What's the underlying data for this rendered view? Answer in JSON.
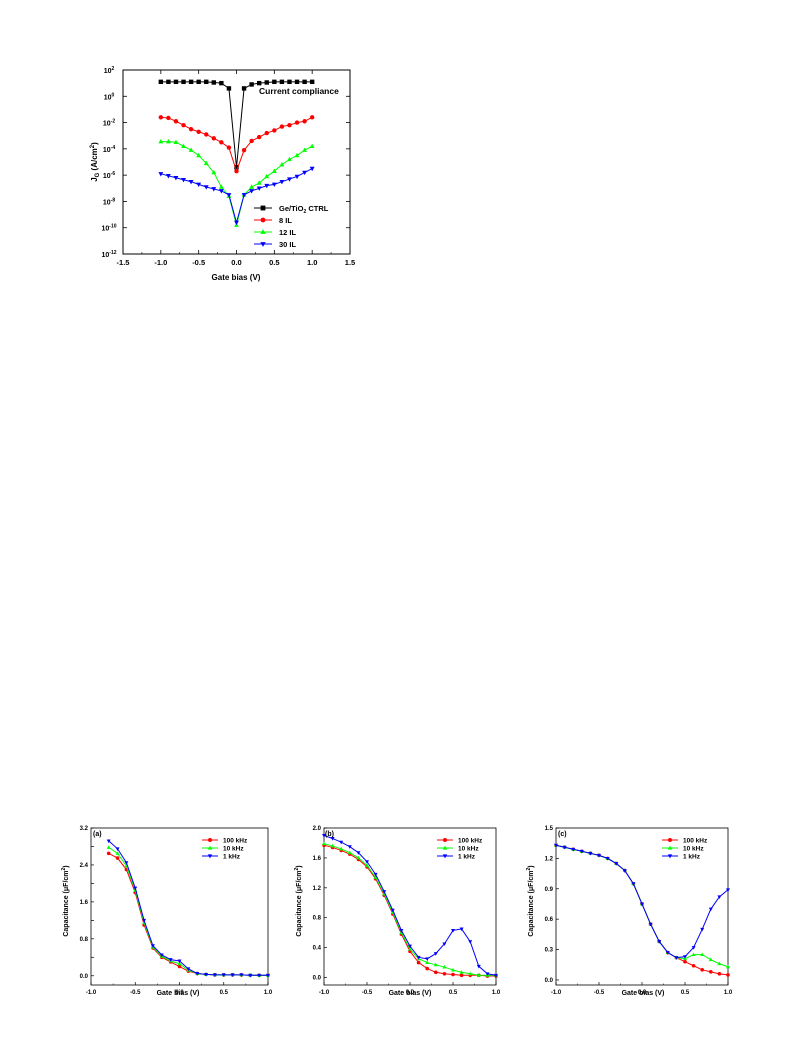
{
  "chart_data": [
    {
      "id": "main",
      "type": "line",
      "xlabel": "Gate bias (V)",
      "ylabel_main": "J",
      "ylabel_sub": "G",
      "ylabel_unit_pre": " (A/cm",
      "ylabel_unit_sup": "2",
      "ylabel_unit_post": ")",
      "xlim": [
        -1.5,
        1.5
      ],
      "ylim_log10": [
        -12,
        2
      ],
      "yscale": "log",
      "xticks": [
        -1.5,
        -1.0,
        -0.5,
        0.0,
        0.5,
        1.0,
        1.5
      ],
      "xtick_labels": [
        "-1.5",
        "-1.0",
        "-0.5",
        "0.0",
        "0.5",
        "1.0",
        "1.5"
      ],
      "ytick_exponents": [
        2,
        0,
        -2,
        -4,
        -6,
        -8,
        -10,
        -12
      ],
      "ytick_base": "10",
      "annotation": "Current compliance",
      "legend_position": "bottom-right",
      "series": [
        {
          "name_pre": "Ge/TiO",
          "name_sub": "2",
          "name_post": " CTRL",
          "color": "#000000",
          "marker": "square",
          "x": [
            -1.0,
            -0.9,
            -0.8,
            -0.7,
            -0.6,
            -0.5,
            -0.4,
            -0.3,
            -0.2,
            -0.1,
            0.0,
            0.1,
            0.2,
            0.3,
            0.4,
            0.5,
            0.6,
            0.7,
            0.8,
            0.9,
            1.0
          ],
          "y_log10": [
            1.1,
            1.1,
            1.1,
            1.1,
            1.1,
            1.1,
            1.1,
            1.05,
            1.0,
            0.6,
            -5.4,
            0.6,
            0.9,
            1.0,
            1.05,
            1.1,
            1.1,
            1.1,
            1.1,
            1.1,
            1.1
          ]
        },
        {
          "name_pre": "8 IL",
          "name_sub": "",
          "name_post": "",
          "color": "#ff0000",
          "marker": "circle",
          "x": [
            -1.0,
            -0.9,
            -0.8,
            -0.7,
            -0.6,
            -0.5,
            -0.4,
            -0.3,
            -0.2,
            -0.1,
            0.0,
            0.1,
            0.2,
            0.3,
            0.4,
            0.5,
            0.6,
            0.7,
            0.8,
            0.9,
            1.0
          ],
          "y_log10": [
            -1.6,
            -1.65,
            -1.9,
            -2.2,
            -2.5,
            -2.7,
            -2.9,
            -3.2,
            -3.5,
            -3.9,
            -5.7,
            -4.1,
            -3.4,
            -3.1,
            -2.8,
            -2.6,
            -2.3,
            -2.2,
            -2.0,
            -1.9,
            -1.6
          ]
        },
        {
          "name_pre": "12 IL",
          "name_sub": "",
          "name_post": "",
          "color": "#00ff00",
          "marker": "triangle-up",
          "x": [
            -1.0,
            -0.9,
            -0.8,
            -0.7,
            -0.6,
            -0.5,
            -0.4,
            -0.3,
            -0.2,
            -0.1,
            0.0,
            0.1,
            0.2,
            0.3,
            0.4,
            0.5,
            0.6,
            0.7,
            0.8,
            0.9,
            1.0
          ],
          "y_log10": [
            -3.45,
            -3.45,
            -3.5,
            -3.8,
            -4.1,
            -4.5,
            -5.1,
            -5.8,
            -6.9,
            -7.6,
            -9.8,
            -7.5,
            -6.9,
            -6.6,
            -6.1,
            -5.7,
            -5.2,
            -4.8,
            -4.5,
            -4.1,
            -3.8
          ]
        },
        {
          "name_pre": "30 IL",
          "name_sub": "",
          "name_post": "",
          "color": "#0000ff",
          "marker": "triangle-down",
          "x": [
            -1.0,
            -0.9,
            -0.8,
            -0.7,
            -0.6,
            -0.5,
            -0.4,
            -0.3,
            -0.2,
            -0.1,
            0.0,
            0.1,
            0.2,
            0.3,
            0.4,
            0.5,
            0.6,
            0.7,
            0.8,
            0.9,
            1.0
          ],
          "y_log10": [
            -5.9,
            -6.05,
            -6.2,
            -6.35,
            -6.5,
            -6.7,
            -6.9,
            -7.05,
            -7.2,
            -7.5,
            -9.6,
            -7.5,
            -7.2,
            -7.0,
            -6.8,
            -6.7,
            -6.5,
            -6.3,
            -6.1,
            -5.8,
            -5.5
          ]
        }
      ]
    },
    {
      "id": "a",
      "type": "line",
      "panel_label": "(a)",
      "xlabel": "Gate bias (V)",
      "ylabel_pre": "Capacitance (",
      "ylabel_mu": "μ",
      "ylabel_mid": "F/cm",
      "ylabel_sup": "2",
      "ylabel_post": ")",
      "xlim": [
        -1.0,
        1.0
      ],
      "ylim": [
        -0.2,
        3.2
      ],
      "xticks": [
        -1.0,
        -0.5,
        0.0,
        0.5,
        1.0
      ],
      "xtick_labels": [
        "-1.0",
        "-0.5",
        "0.0",
        "0.5",
        "1.0"
      ],
      "yticks": [
        0.0,
        0.4,
        0.8,
        1.2,
        1.6,
        2.0,
        2.4,
        2.8,
        3.2
      ],
      "ytick_labels": [
        "0.0",
        "",
        "0.8",
        "",
        "1.6",
        "",
        "2.4",
        "",
        "3.2"
      ],
      "legend_position": "top-right",
      "series": [
        {
          "name": "100 kHz",
          "color": "#ff0000",
          "marker": "circle",
          "x": [
            -0.8,
            -0.7,
            -0.6,
            -0.5,
            -0.4,
            -0.3,
            -0.2,
            -0.1,
            0.0,
            0.1,
            0.2,
            0.3,
            0.4,
            0.5,
            0.6,
            0.7,
            0.8,
            0.9,
            1.0
          ],
          "y": [
            2.65,
            2.55,
            2.3,
            1.8,
            1.1,
            0.6,
            0.4,
            0.3,
            0.2,
            0.1,
            0.05,
            0.03,
            0.02,
            0.02,
            0.02,
            0.02,
            0.01,
            0.01,
            0.01
          ]
        },
        {
          "name": "10 kHz",
          "color": "#00ff00",
          "marker": "triangle-up",
          "x": [
            -0.8,
            -0.7,
            -0.6,
            -0.5,
            -0.4,
            -0.3,
            -0.2,
            -0.1,
            0.0,
            0.1,
            0.2,
            0.3,
            0.4,
            0.5,
            0.6,
            0.7,
            0.8,
            0.9,
            1.0
          ],
          "y": [
            2.78,
            2.65,
            2.38,
            1.85,
            1.15,
            0.62,
            0.42,
            0.32,
            0.26,
            0.12,
            0.05,
            0.03,
            0.02,
            0.02,
            0.02,
            0.02,
            0.01,
            0.01,
            0.01
          ]
        },
        {
          "name": "1 kHz",
          "color": "#0000ff",
          "marker": "triangle-down",
          "x": [
            -0.8,
            -0.7,
            -0.6,
            -0.5,
            -0.4,
            -0.3,
            -0.2,
            -0.1,
            0.0,
            0.1,
            0.2,
            0.3,
            0.4,
            0.5,
            0.6,
            0.7,
            0.8,
            0.9,
            1.0
          ],
          "y": [
            2.92,
            2.75,
            2.45,
            1.9,
            1.2,
            0.65,
            0.45,
            0.35,
            0.32,
            0.15,
            0.05,
            0.03,
            0.02,
            0.02,
            0.02,
            0.02,
            0.01,
            0.01,
            0.01
          ]
        }
      ]
    },
    {
      "id": "b",
      "type": "line",
      "panel_label": "(b)",
      "xlabel": "Gate bias (V)",
      "ylabel_pre": "Capacitance (",
      "ylabel_mu": "μ",
      "ylabel_mid": "F/cm",
      "ylabel_sup": "2",
      "ylabel_post": ")",
      "xlim": [
        -1.0,
        1.0
      ],
      "ylim": [
        -0.1,
        2.0
      ],
      "xticks": [
        -1.0,
        -0.5,
        0.0,
        0.5,
        1.0
      ],
      "xtick_labels": [
        "-1.0",
        "-0.5",
        "0.0",
        "0.5",
        "1.0"
      ],
      "yticks": [
        0.0,
        0.4,
        0.8,
        1.2,
        1.6,
        2.0
      ],
      "ytick_labels": [
        "0.0",
        "0.4",
        "0.8",
        "1.2",
        "1.6",
        "2.0"
      ],
      "legend_position": "top-right",
      "series": [
        {
          "name": "100 kHz",
          "color": "#ff0000",
          "marker": "circle",
          "x": [
            -1.0,
            -0.9,
            -0.8,
            -0.7,
            -0.6,
            -0.5,
            -0.4,
            -0.3,
            -0.2,
            -0.1,
            0.0,
            0.1,
            0.2,
            0.3,
            0.4,
            0.5,
            0.6,
            0.7,
            0.8,
            0.9,
            1.0
          ],
          "y": [
            1.77,
            1.74,
            1.7,
            1.65,
            1.58,
            1.48,
            1.32,
            1.1,
            0.85,
            0.58,
            0.35,
            0.2,
            0.12,
            0.07,
            0.05,
            0.04,
            0.03,
            0.03,
            0.03,
            0.02,
            0.02
          ]
        },
        {
          "name": "10 kHz",
          "color": "#00ff00",
          "marker": "triangle-up",
          "x": [
            -1.0,
            -0.9,
            -0.8,
            -0.7,
            -0.6,
            -0.5,
            -0.4,
            -0.3,
            -0.2,
            -0.1,
            0.0,
            0.1,
            0.2,
            0.3,
            0.4,
            0.5,
            0.6,
            0.7,
            0.8,
            0.9,
            1.0
          ],
          "y": [
            1.79,
            1.76,
            1.72,
            1.67,
            1.6,
            1.5,
            1.34,
            1.12,
            0.87,
            0.6,
            0.38,
            0.25,
            0.2,
            0.17,
            0.14,
            0.1,
            0.07,
            0.05,
            0.03,
            0.03,
            0.03
          ]
        },
        {
          "name": "1 kHz",
          "color": "#0000ff",
          "marker": "triangle-down",
          "x": [
            -1.0,
            -0.9,
            -0.8,
            -0.7,
            -0.6,
            -0.5,
            -0.4,
            -0.3,
            -0.2,
            -0.1,
            0.0,
            0.1,
            0.2,
            0.3,
            0.4,
            0.5,
            0.6,
            0.7,
            0.8,
            0.9,
            1.0
          ],
          "y": [
            1.9,
            1.86,
            1.81,
            1.75,
            1.67,
            1.55,
            1.38,
            1.15,
            0.9,
            0.63,
            0.42,
            0.27,
            0.25,
            0.32,
            0.45,
            0.63,
            0.65,
            0.48,
            0.15,
            0.05,
            0.03
          ]
        }
      ]
    },
    {
      "id": "c",
      "type": "line",
      "panel_label": "(c)",
      "xlabel": "Gate bias (V)",
      "ylabel_pre": "Capacitance (",
      "ylabel_mu": "μ",
      "ylabel_mid": "F/cm",
      "ylabel_sup": "2",
      "ylabel_post": ")",
      "xlim": [
        -1.0,
        1.0
      ],
      "ylim": [
        -0.05,
        1.5
      ],
      "xticks": [
        -1.0,
        -0.5,
        0.0,
        0.5,
        1.0
      ],
      "xtick_labels": [
        "-1.0",
        "-0.5",
        "0.0",
        "0.5",
        "1.0"
      ],
      "yticks": [
        0.0,
        0.3,
        0.6,
        0.9,
        1.2,
        1.5
      ],
      "ytick_labels": [
        "0.0",
        "0.3",
        "0.6",
        "0.9",
        "1.2",
        "1.5"
      ],
      "legend_position": "top-right",
      "series": [
        {
          "name": "100 kHz",
          "color": "#ff0000",
          "marker": "circle",
          "x": [
            -1.0,
            -0.9,
            -0.8,
            -0.7,
            -0.6,
            -0.5,
            -0.4,
            -0.3,
            -0.2,
            -0.1,
            0.0,
            0.1,
            0.2,
            0.3,
            0.4,
            0.5,
            0.6,
            0.7,
            0.8,
            0.9,
            1.0
          ],
          "y": [
            1.33,
            1.31,
            1.29,
            1.27,
            1.25,
            1.23,
            1.2,
            1.15,
            1.08,
            0.95,
            0.75,
            0.55,
            0.38,
            0.27,
            0.22,
            0.18,
            0.14,
            0.1,
            0.08,
            0.06,
            0.05
          ]
        },
        {
          "name": "10 kHz",
          "color": "#00ff00",
          "marker": "triangle-up",
          "x": [
            -1.0,
            -0.9,
            -0.8,
            -0.7,
            -0.6,
            -0.5,
            -0.4,
            -0.3,
            -0.2,
            -0.1,
            0.0,
            0.1,
            0.2,
            0.3,
            0.4,
            0.5,
            0.6,
            0.7,
            0.8,
            0.9,
            1.0
          ],
          "y": [
            1.33,
            1.31,
            1.29,
            1.27,
            1.25,
            1.23,
            1.2,
            1.15,
            1.08,
            0.95,
            0.75,
            0.55,
            0.38,
            0.27,
            0.22,
            0.21,
            0.25,
            0.25,
            0.2,
            0.16,
            0.13
          ]
        },
        {
          "name": "1 kHz",
          "color": "#0000ff",
          "marker": "triangle-down",
          "x": [
            -1.0,
            -0.9,
            -0.8,
            -0.7,
            -0.6,
            -0.5,
            -0.4,
            -0.3,
            -0.2,
            -0.1,
            0.0,
            0.1,
            0.2,
            0.3,
            0.4,
            0.5,
            0.6,
            0.7,
            0.8,
            0.9,
            1.0
          ],
          "y": [
            1.33,
            1.31,
            1.29,
            1.27,
            1.25,
            1.23,
            1.2,
            1.15,
            1.08,
            0.95,
            0.75,
            0.55,
            0.38,
            0.27,
            0.22,
            0.23,
            0.32,
            0.5,
            0.7,
            0.82,
            0.89
          ]
        }
      ]
    }
  ]
}
